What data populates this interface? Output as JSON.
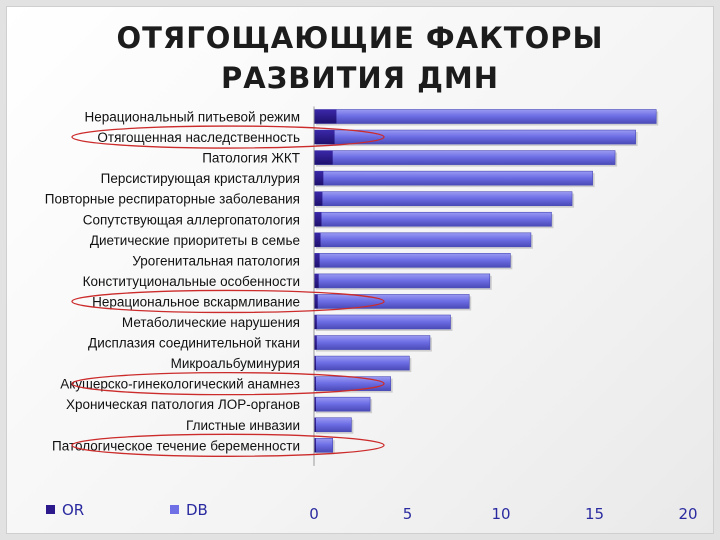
{
  "title_line1": "ОТЯГОЩАЮЩИЕ ФАКТОРЫ",
  "title_line2": "РАЗВИТИЯ ДМН",
  "colors": {
    "or": "#2c1a8c",
    "db": "#6f6fe6",
    "db_dark": "#4a4ab8",
    "highlight": "#cc2b2b",
    "tick_text": "#2a2aa0"
  },
  "chart_data": {
    "type": "bar",
    "orientation": "horizontal",
    "categories": [
      "Нерациональный питьевой режим",
      "Отягощенная наследственность",
      "Патология ЖКТ",
      "Персистирующая кристаллурия",
      "Повторные респираторные заболевания",
      "Сопутствующая аллергопатология",
      "Диетические приоритеты в семье",
      "Урогенитальная патология",
      "Конституциональные особенности",
      "Нерациональное вскармливание",
      "Метаболические нарушения",
      "Дисплазия соединительной ткани",
      "Микроальбуминурия",
      "Акушерско-гинекологический анамнез",
      "Хроническая патология ЛОР-органов",
      "Глистные инвазии",
      "Патологическое течение беременности"
    ],
    "series": [
      {
        "name": "OR",
        "values": [
          1.2,
          1.1,
          1.0,
          0.5,
          0.45,
          0.4,
          0.35,
          0.3,
          0.25,
          0.2,
          0.15,
          0.15,
          0.1,
          0.1,
          0.1,
          0.1,
          0.1
        ]
      },
      {
        "name": "DB",
        "values": [
          18.3,
          17.2,
          16.1,
          14.9,
          13.8,
          12.7,
          11.6,
          10.5,
          9.4,
          8.3,
          7.3,
          6.2,
          5.1,
          4.1,
          3.0,
          2.0,
          1.0
        ]
      }
    ],
    "xlim": [
      0,
      20
    ],
    "xticks": [
      "0",
      "5",
      "10",
      "15",
      "20"
    ],
    "highlighted": [
      "Отягощенная наследственность",
      "Нерациональное вскармливание",
      "Акушерско-гинекологический анамнез",
      "Патологическое течение беременности"
    ],
    "legend_position": "bottom-left"
  }
}
